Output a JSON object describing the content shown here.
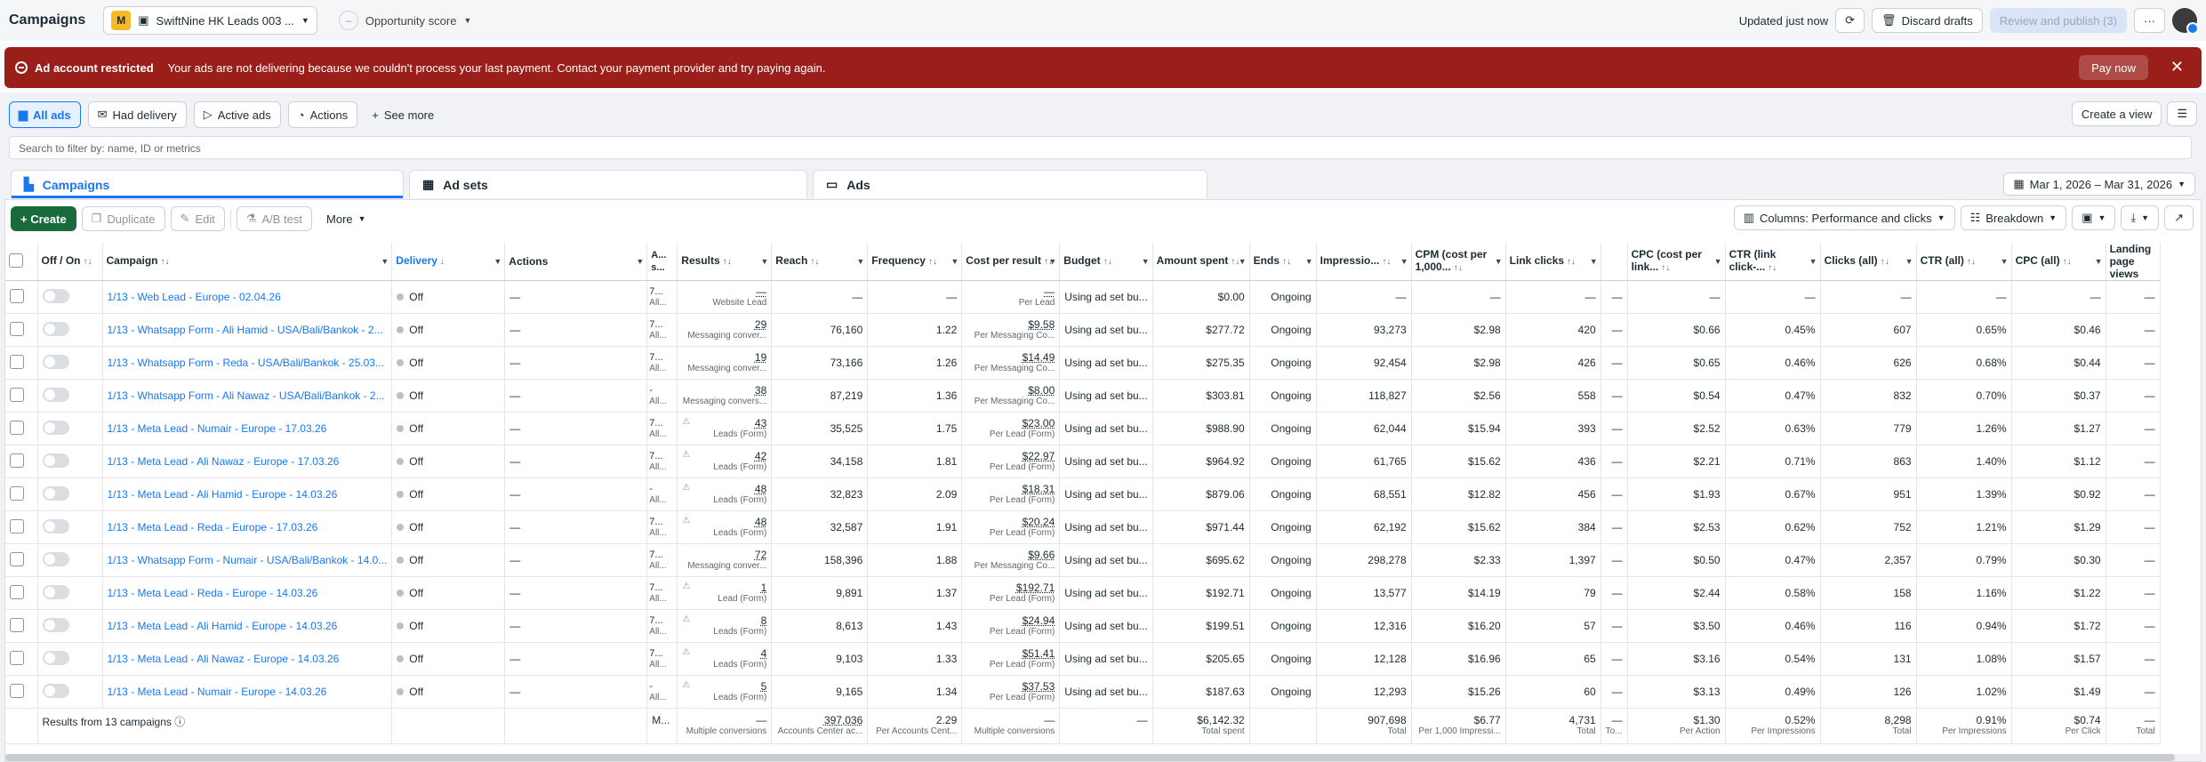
{
  "header": {
    "title": "Campaigns",
    "account_badge": "M",
    "account_name": "SwiftNine HK Leads 003 ...",
    "opportunity": "Opportunity score",
    "updated": "Updated just now",
    "discard": "Discard drafts",
    "review": "Review and publish (3)",
    "more": "···"
  },
  "alert": {
    "title": "Ad account restricted",
    "message": "Your ads are not delivering because we couldn't process your last payment. Contact your payment provider and try paying again.",
    "pay": "Pay now",
    "close": "✕"
  },
  "filters": {
    "all_ads": "All ads",
    "had_delivery": "Had delivery",
    "active_ads": "Active ads",
    "actions": "Actions",
    "see_more": "See more",
    "create_view": "Create a view",
    "search_placeholder": "Search to filter by: name, ID or metrics"
  },
  "levels": {
    "campaigns": "Campaigns",
    "adsets": "Ad sets",
    "ads": "Ads",
    "date": "Mar 1, 2026 – Mar 31, 2026"
  },
  "toolbar": {
    "create": "+ Create",
    "duplicate": "Duplicate",
    "edit": "Edit",
    "ab": "A/B test",
    "more": "More",
    "columns": "Columns: Performance and clicks",
    "breakdown": "Breakdown"
  },
  "columns": [
    "Off / On",
    "Campaign",
    "Delivery",
    "Actions",
    "A... s...",
    "Results",
    "Reach",
    "Frequency",
    "Cost per result",
    "Budget",
    "Amount spent",
    "Ends",
    "Impressio...",
    "CPM (cost per 1,000...",
    "Link clicks",
    "",
    "CPC (cost per link...",
    "CTR (link click-...",
    "Clicks (all)",
    "CTR (all)",
    "CPC (all)",
    "Landing page views"
  ],
  "rows": [
    {
      "name": "1/13 - Web Lead - Europe - 02.04.26",
      "delivery": "Off",
      "as": "7...",
      "as2": "All...",
      "res": "—",
      "res_sub": "Website Lead",
      "reach": "—",
      "freq": "—",
      "cpr": "—",
      "cpr_sub": "Per Lead",
      "budget": "Using ad set bu...",
      "spent": "$0.00",
      "ends": "Ongoing",
      "impr": "—",
      "cpm": "—",
      "lc": "—",
      "cpc": "—",
      "ctr": "—",
      "clicks": "—",
      "ctra": "—",
      "cpca": "—",
      "lpv": "—"
    },
    {
      "name": "1/13 - Whatsapp Form - Ali Hamid - USA/Bali/Bankok - 2...",
      "delivery": "Off",
      "as": "7...",
      "as2": "All...",
      "res": "29",
      "res_sub": "Messaging conver...",
      "reach": "76,160",
      "freq": "1.22",
      "cpr": "$9.58",
      "cpr_sub": "Per Messaging Co...",
      "budget": "Using ad set bu...",
      "spent": "$277.72",
      "ends": "Ongoing",
      "impr": "93,273",
      "cpm": "$2.98",
      "lc": "420",
      "cpc": "$0.66",
      "ctr": "0.45%",
      "clicks": "607",
      "ctra": "0.65%",
      "cpca": "$0.46",
      "lpv": "—"
    },
    {
      "name": "1/13 - Whatsapp Form - Reda - USA/Bali/Bankok - 25.03...",
      "delivery": "Off",
      "as": "7...",
      "as2": "All...",
      "res": "19",
      "res_sub": "Messaging conver...",
      "reach": "73,166",
      "freq": "1.26",
      "cpr": "$14.49",
      "cpr_sub": "Per Messaging Co...",
      "budget": "Using ad set bu...",
      "spent": "$275.35",
      "ends": "Ongoing",
      "impr": "92,454",
      "cpm": "$2.98",
      "lc": "426",
      "cpc": "$0.65",
      "ctr": "0.46%",
      "clicks": "626",
      "ctra": "0.68%",
      "cpca": "$0.44",
      "lpv": "—"
    },
    {
      "name": "1/13 - Whatsapp Form - Ali Nawaz - USA/Bali/Bankok - 2...",
      "delivery": "Off",
      "as": "-",
      "as2": "All...",
      "res": "38",
      "res_sub": "Messaging convers...",
      "reach": "87,219",
      "freq": "1.36",
      "cpr": "$8.00",
      "cpr_sub": "Per Messaging Co...",
      "budget": "Using ad set bu...",
      "spent": "$303.81",
      "ends": "Ongoing",
      "impr": "118,827",
      "cpm": "$2.56",
      "lc": "558",
      "cpc": "$0.54",
      "ctr": "0.47%",
      "clicks": "832",
      "ctra": "0.70%",
      "cpca": "$0.37",
      "lpv": "—"
    },
    {
      "name": "1/13 - Meta Lead - Numair - Europe - 17.03.26",
      "delivery": "Off",
      "as": "7...",
      "as2": "All...",
      "res": "43",
      "res_sub": "Leads (Form)",
      "reach": "35,525",
      "freq": "1.75",
      "cpr": "$23.00",
      "cpr_sub": "Per Lead (Form)",
      "budget": "Using ad set bu...",
      "spent": "$988.90",
      "ends": "Ongoing",
      "impr": "62,044",
      "cpm": "$15.94",
      "lc": "393",
      "cpc": "$2.52",
      "ctr": "0.63%",
      "clicks": "779",
      "ctra": "1.26%",
      "cpca": "$1.27",
      "lpv": "—"
    },
    {
      "name": "1/13 - Meta Lead - Ali Nawaz - Europe - 17.03.26",
      "delivery": "Off",
      "as": "7...",
      "as2": "All...",
      "res": "42",
      "res_sub": "Leads (Form)",
      "reach": "34,158",
      "freq": "1.81",
      "cpr": "$22.97",
      "cpr_sub": "Per Lead (Form)",
      "budget": "Using ad set bu...",
      "spent": "$964.92",
      "ends": "Ongoing",
      "impr": "61,765",
      "cpm": "$15.62",
      "lc": "436",
      "cpc": "$2.21",
      "ctr": "0.71%",
      "clicks": "863",
      "ctra": "1.40%",
      "cpca": "$1.12",
      "lpv": "—"
    },
    {
      "name": "1/13 - Meta Lead - Ali Hamid - Europe - 14.03.26",
      "delivery": "Off",
      "as": "-",
      "as2": "All...",
      "res": "48",
      "res_sub": "Leads (Form)",
      "reach": "32,823",
      "freq": "2.09",
      "cpr": "$18.31",
      "cpr_sub": "Per Lead (Form)",
      "budget": "Using ad set bu...",
      "spent": "$879.06",
      "ends": "Ongoing",
      "impr": "68,551",
      "cpm": "$12.82",
      "lc": "456",
      "cpc": "$1.93",
      "ctr": "0.67%",
      "clicks": "951",
      "ctra": "1.39%",
      "cpca": "$0.92",
      "lpv": "—"
    },
    {
      "name": "1/13 - Meta Lead - Reda - Europe - 17.03.26",
      "delivery": "Off",
      "as": "7...",
      "as2": "All...",
      "res": "48",
      "res_sub": "Leads (Form)",
      "reach": "32,587",
      "freq": "1.91",
      "cpr": "$20.24",
      "cpr_sub": "Per Lead (Form)",
      "budget": "Using ad set bu...",
      "spent": "$971.44",
      "ends": "Ongoing",
      "impr": "62,192",
      "cpm": "$15.62",
      "lc": "384",
      "cpc": "$2.53",
      "ctr": "0.62%",
      "clicks": "752",
      "ctra": "1.21%",
      "cpca": "$1.29",
      "lpv": "—"
    },
    {
      "name": "1/13 - Whatsapp Form - Numair - USA/Bali/Bankok - 14.0...",
      "delivery": "Off",
      "as": "7...",
      "as2": "All...",
      "res": "72",
      "res_sub": "Messaging conver...",
      "reach": "158,396",
      "freq": "1.88",
      "cpr": "$9.66",
      "cpr_sub": "Per Messaging Co...",
      "budget": "Using ad set bu...",
      "spent": "$695.62",
      "ends": "Ongoing",
      "impr": "298,278",
      "cpm": "$2.33",
      "lc": "1,397",
      "cpc": "$0.50",
      "ctr": "0.47%",
      "clicks": "2,357",
      "ctra": "0.79%",
      "cpca": "$0.30",
      "lpv": "—"
    },
    {
      "name": "1/13 - Meta Lead - Reda - Europe - 14.03.26",
      "delivery": "Off",
      "as": "7...",
      "as2": "All...",
      "res": "1",
      "res_sub": "Lead (Form)",
      "reach": "9,891",
      "freq": "1.37",
      "cpr": "$192.71",
      "cpr_sub": "Per Lead (Form)",
      "budget": "Using ad set bu...",
      "spent": "$192.71",
      "ends": "Ongoing",
      "impr": "13,577",
      "cpm": "$14.19",
      "lc": "79",
      "cpc": "$2.44",
      "ctr": "0.58%",
      "clicks": "158",
      "ctra": "1.16%",
      "cpca": "$1.22",
      "lpv": "—"
    },
    {
      "name": "1/13 - Meta Lead - Ali Hamid - Europe - 14.03.26",
      "delivery": "Off",
      "as": "7...",
      "as2": "All...",
      "res": "8",
      "res_sub": "Leads (Form)",
      "reach": "8,613",
      "freq": "1.43",
      "cpr": "$24.94",
      "cpr_sub": "Per Lead (Form)",
      "budget": "Using ad set bu...",
      "spent": "$199.51",
      "ends": "Ongoing",
      "impr": "12,316",
      "cpm": "$16.20",
      "lc": "57",
      "cpc": "$3.50",
      "ctr": "0.46%",
      "clicks": "116",
      "ctra": "0.94%",
      "cpca": "$1.72",
      "lpv": "—"
    },
    {
      "name": "1/13 - Meta Lead - Ali Nawaz - Europe - 14.03.26",
      "delivery": "Off",
      "as": "7...",
      "as2": "All...",
      "res": "4",
      "res_sub": "Leads (Form)",
      "reach": "9,103",
      "freq": "1.33",
      "cpr": "$51.41",
      "cpr_sub": "Per Lead (Form)",
      "budget": "Using ad set bu...",
      "spent": "$205.65",
      "ends": "Ongoing",
      "impr": "12,128",
      "cpm": "$16.96",
      "lc": "65",
      "cpc": "$3.16",
      "ctr": "0.54%",
      "clicks": "131",
      "ctra": "1.08%",
      "cpca": "$1.57",
      "lpv": "—"
    },
    {
      "name": "1/13 - Meta Lead - Numair - Europe - 14.03.26",
      "delivery": "Off",
      "as": "-",
      "as2": "All...",
      "res": "5",
      "res_sub": "Leads (Form)",
      "reach": "9,165",
      "freq": "1.34",
      "cpr": "$37.53",
      "cpr_sub": "Per Lead (Form)",
      "budget": "Using ad set bu...",
      "spent": "$187.63",
      "ends": "Ongoing",
      "impr": "12,293",
      "cpm": "$15.26",
      "lc": "60",
      "cpc": "$3.13",
      "ctr": "0.49%",
      "clicks": "126",
      "ctra": "1.02%",
      "cpca": "$1.49",
      "lpv": "—"
    }
  ],
  "totals": {
    "label": "Results from 13 campaigns",
    "as": "M...",
    "res": "—",
    "res_sub": "Multiple conversions",
    "reach": "397,036",
    "reach_sub": "Accounts Center ac...",
    "freq": "2.29",
    "freq_sub": "Per Accounts Cent...",
    "cpr": "—",
    "cpr_sub": "Multiple conversions",
    "budget": "—",
    "spent": "$6,142.32",
    "spent_sub": "Total spent",
    "impr": "907,698",
    "impr_sub": "Total",
    "cpm": "$6.77",
    "cpm_sub": "Per 1,000 Impressi...",
    "lc": "4,731",
    "lc_sub": "Total",
    "blank": "—",
    "blank_sub": "To...",
    "cpc": "$1.30",
    "cpc_sub": "Per Action",
    "ctr": "0.52%",
    "ctr_sub": "Per Impressions",
    "clicks": "8,298",
    "clicks_sub": "Total",
    "ctra": "0.91%",
    "ctra_sub": "Per Impressions",
    "cpca": "$0.74",
    "cpca_sub": "Per Click",
    "lpv": "—",
    "lpv_sub": "Total"
  }
}
